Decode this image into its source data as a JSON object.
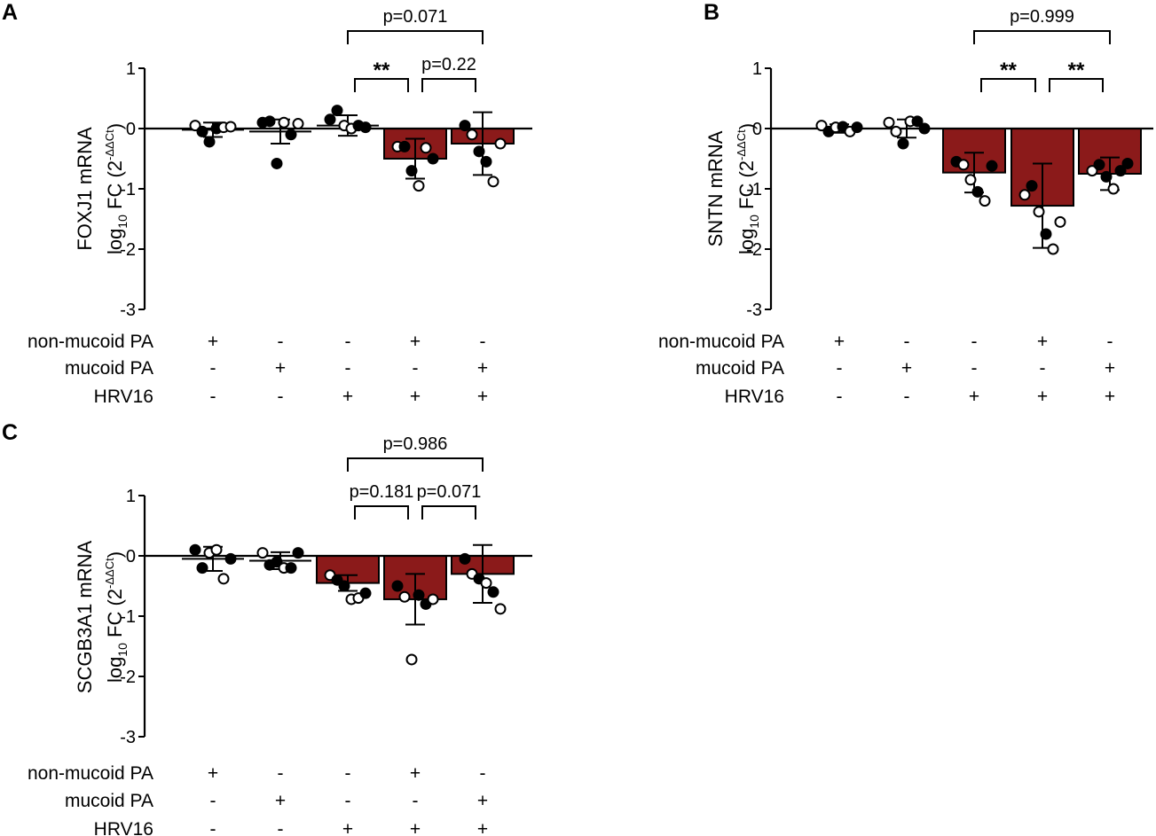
{
  "colors": {
    "bar": "#8b1a1a",
    "ink": "#000000",
    "open_point": "#ffffff"
  },
  "chart_data": [
    {
      "type": "bar",
      "panel": "A",
      "ylabel_line1": "FOXJ1 mRNA",
      "ylabel_line2": "log",
      "ylabel_sub": "10",
      "ylabel_fc": " FC (2",
      "ylabel_sup": "-ΔΔCt",
      "ylabel_close": ")",
      "ylim": [
        -3,
        1
      ],
      "yticks": [
        "1",
        "0",
        "-1",
        "-2",
        "-3"
      ],
      "categories": [
        "non-mucoid PA",
        "mucoid PA",
        "HRV16",
        "HRV16 + non-mucoid PA",
        "HRV16 + mucoid PA"
      ],
      "means": [
        -0.02,
        -0.05,
        0.05,
        -0.5,
        -0.25
      ],
      "sd": [
        0.12,
        0.2,
        0.17,
        0.33,
        0.52
      ],
      "filled_bar": [
        false,
        false,
        false,
        true,
        true
      ],
      "points": [
        [
          [
            0.05,
            0
          ],
          [
            -0.05,
            1
          ],
          [
            -0.22,
            1
          ],
          [
            0,
            1
          ],
          [
            0.02,
            0
          ],
          [
            0.03,
            0
          ]
        ],
        [
          [
            0.1,
            1
          ],
          [
            0.12,
            1
          ],
          [
            -0.58,
            1
          ],
          [
            0.1,
            0
          ],
          [
            -0.1,
            1
          ],
          [
            0.08,
            0
          ]
        ],
        [
          [
            0.15,
            1
          ],
          [
            0.3,
            1
          ],
          [
            0.05,
            0
          ],
          [
            0,
            0
          ],
          [
            0.05,
            1
          ],
          [
            0.02,
            1
          ]
        ],
        [
          [
            -0.3,
            0
          ],
          [
            -0.3,
            1
          ],
          [
            -0.7,
            1
          ],
          [
            -0.95,
            0
          ],
          [
            -0.32,
            0
          ],
          [
            -0.5,
            1
          ]
        ],
        [
          [
            0.05,
            1
          ],
          [
            -0.1,
            0
          ],
          [
            -0.38,
            1
          ],
          [
            -0.55,
            1
          ],
          [
            -0.88,
            0
          ],
          [
            -0.25,
            0
          ]
        ]
      ],
      "comparisons": [
        {
          "label": "**",
          "from": 3,
          "to": 4,
          "level": 1,
          "bold": true
        },
        {
          "label": "p=0.22",
          "from": 4,
          "to": 5,
          "level": 1,
          "bold": false
        },
        {
          "label": "p=0.071",
          "from": 3,
          "to": 5,
          "level": 2,
          "bold": false
        }
      ],
      "conditions": [
        {
          "label": "non-mucoid PA",
          "signs": [
            "+",
            "-",
            "-",
            "+",
            "-"
          ]
        },
        {
          "label": "mucoid PA",
          "signs": [
            "-",
            "+",
            "-",
            "-",
            "+"
          ]
        },
        {
          "label": "HRV16",
          "signs": [
            "-",
            "-",
            "+",
            "+",
            "+"
          ]
        }
      ]
    },
    {
      "type": "bar",
      "panel": "B",
      "ylabel_line1": "SNTN mRNA",
      "ylabel_line2": "log",
      "ylabel_sub": "10",
      "ylabel_fc": " FC (2",
      "ylabel_sup": "-ΔΔCt",
      "ylabel_close": ")",
      "ylim": [
        -3,
        1
      ],
      "yticks": [
        "1",
        "0",
        "-1",
        "-2",
        "-3"
      ],
      "categories": [
        "non-mucoid PA",
        "mucoid PA",
        "HRV16",
        "HRV16 + non-mucoid PA",
        "HRV16 + mucoid PA"
      ],
      "means": [
        0,
        0,
        -0.73,
        -1.28,
        -0.75
      ],
      "sd": [
        0.07,
        0.15,
        0.33,
        0.7,
        0.27
      ],
      "filled_bar": [
        false,
        false,
        true,
        true,
        true
      ],
      "points": [
        [
          [
            0.05,
            0
          ],
          [
            -0.05,
            1
          ],
          [
            0.02,
            0
          ],
          [
            0.03,
            1
          ],
          [
            -0.05,
            0
          ],
          [
            0.02,
            1
          ]
        ],
        [
          [
            0.1,
            0
          ],
          [
            -0.05,
            0
          ],
          [
            -0.25,
            1
          ],
          [
            0.12,
            0
          ],
          [
            0.12,
            1
          ],
          [
            0,
            1
          ]
        ],
        [
          [
            -0.55,
            1
          ],
          [
            -0.6,
            0
          ],
          [
            -0.85,
            0
          ],
          [
            -1.05,
            1
          ],
          [
            -1.2,
            0
          ],
          [
            -0.62,
            1
          ]
        ],
        [
          [
            -1.1,
            0
          ],
          [
            -0.95,
            1
          ],
          [
            -1.38,
            0
          ],
          [
            -1.75,
            1
          ],
          [
            -2.0,
            0
          ],
          [
            -1.55,
            0
          ]
        ],
        [
          [
            -0.7,
            0
          ],
          [
            -0.6,
            1
          ],
          [
            -0.8,
            1
          ],
          [
            -1.0,
            0
          ],
          [
            -0.7,
            1
          ],
          [
            -0.58,
            1
          ]
        ]
      ],
      "comparisons": [
        {
          "label": "**",
          "from": 3,
          "to": 4,
          "level": 1,
          "bold": true
        },
        {
          "label": "**",
          "from": 4,
          "to": 5,
          "level": 1,
          "bold": true
        },
        {
          "label": "p=0.999",
          "from": 3,
          "to": 5,
          "level": 2,
          "bold": false
        }
      ],
      "conditions": [
        {
          "label": "non-mucoid PA",
          "signs": [
            "+",
            "-",
            "-",
            "+",
            "-"
          ]
        },
        {
          "label": "mucoid PA",
          "signs": [
            "-",
            "+",
            "-",
            "-",
            "+"
          ]
        },
        {
          "label": "HRV16",
          "signs": [
            "-",
            "-",
            "+",
            "+",
            "+"
          ]
        }
      ]
    },
    {
      "type": "bar",
      "panel": "C",
      "ylabel_line1": "SCGB3A1 mRNA",
      "ylabel_line2": "log",
      "ylabel_sub": "10",
      "ylabel_fc": " FC (2",
      "ylabel_sup": "-ΔΔCt",
      "ylabel_close": ")",
      "ylim": [
        -3,
        1
      ],
      "yticks": [
        "1",
        "0",
        "-1",
        "-2",
        "-3"
      ],
      "categories": [
        "non-mucoid PA",
        "mucoid PA",
        "HRV16",
        "HRV16 + non-mucoid PA",
        "HRV16 + mucoid PA"
      ],
      "means": [
        -0.05,
        -0.08,
        -0.45,
        -0.72,
        -0.3
      ],
      "sd": [
        0.2,
        0.14,
        0.13,
        0.42,
        0.48
      ],
      "filled_bar": [
        false,
        false,
        true,
        true,
        true
      ],
      "points": [
        [
          [
            0.1,
            1
          ],
          [
            -0.2,
            1
          ],
          [
            0.05,
            0
          ],
          [
            0.1,
            0
          ],
          [
            -0.38,
            0
          ],
          [
            -0.05,
            1
          ]
        ],
        [
          [
            0.05,
            0
          ],
          [
            -0.15,
            1
          ],
          [
            -0.1,
            1
          ],
          [
            -0.2,
            0
          ],
          [
            -0.2,
            1
          ],
          [
            0.05,
            1
          ]
        ],
        [
          [
            -0.32,
            0
          ],
          [
            -0.4,
            1
          ],
          [
            -0.5,
            1
          ],
          [
            -0.72,
            0
          ],
          [
            -0.7,
            0
          ],
          [
            -0.62,
            1
          ]
        ],
        [
          [
            -0.5,
            1
          ],
          [
            -0.68,
            0
          ],
          [
            -1.72,
            0
          ],
          [
            -0.65,
            1
          ],
          [
            -0.8,
            1
          ],
          [
            -0.72,
            0
          ]
        ],
        [
          [
            -0.05,
            1
          ],
          [
            -0.3,
            0
          ],
          [
            -0.38,
            1
          ],
          [
            -0.45,
            0
          ],
          [
            -0.6,
            1
          ],
          [
            -0.88,
            0
          ]
        ]
      ],
      "comparisons": [
        {
          "label": "p=0.181",
          "from": 3,
          "to": 4,
          "level": 1,
          "bold": false
        },
        {
          "label": "p=0.071",
          "from": 4,
          "to": 5,
          "level": 1,
          "bold": false
        },
        {
          "label": "p=0.986",
          "from": 3,
          "to": 5,
          "level": 2,
          "bold": false
        }
      ],
      "conditions": [
        {
          "label": "non-mucoid PA",
          "signs": [
            "+",
            "-",
            "-",
            "+",
            "-"
          ]
        },
        {
          "label": "mucoid PA",
          "signs": [
            "-",
            "+",
            "-",
            "-",
            "+"
          ]
        },
        {
          "label": "HRV16",
          "signs": [
            "-",
            "-",
            "+",
            "+",
            "+"
          ]
        }
      ]
    }
  ]
}
